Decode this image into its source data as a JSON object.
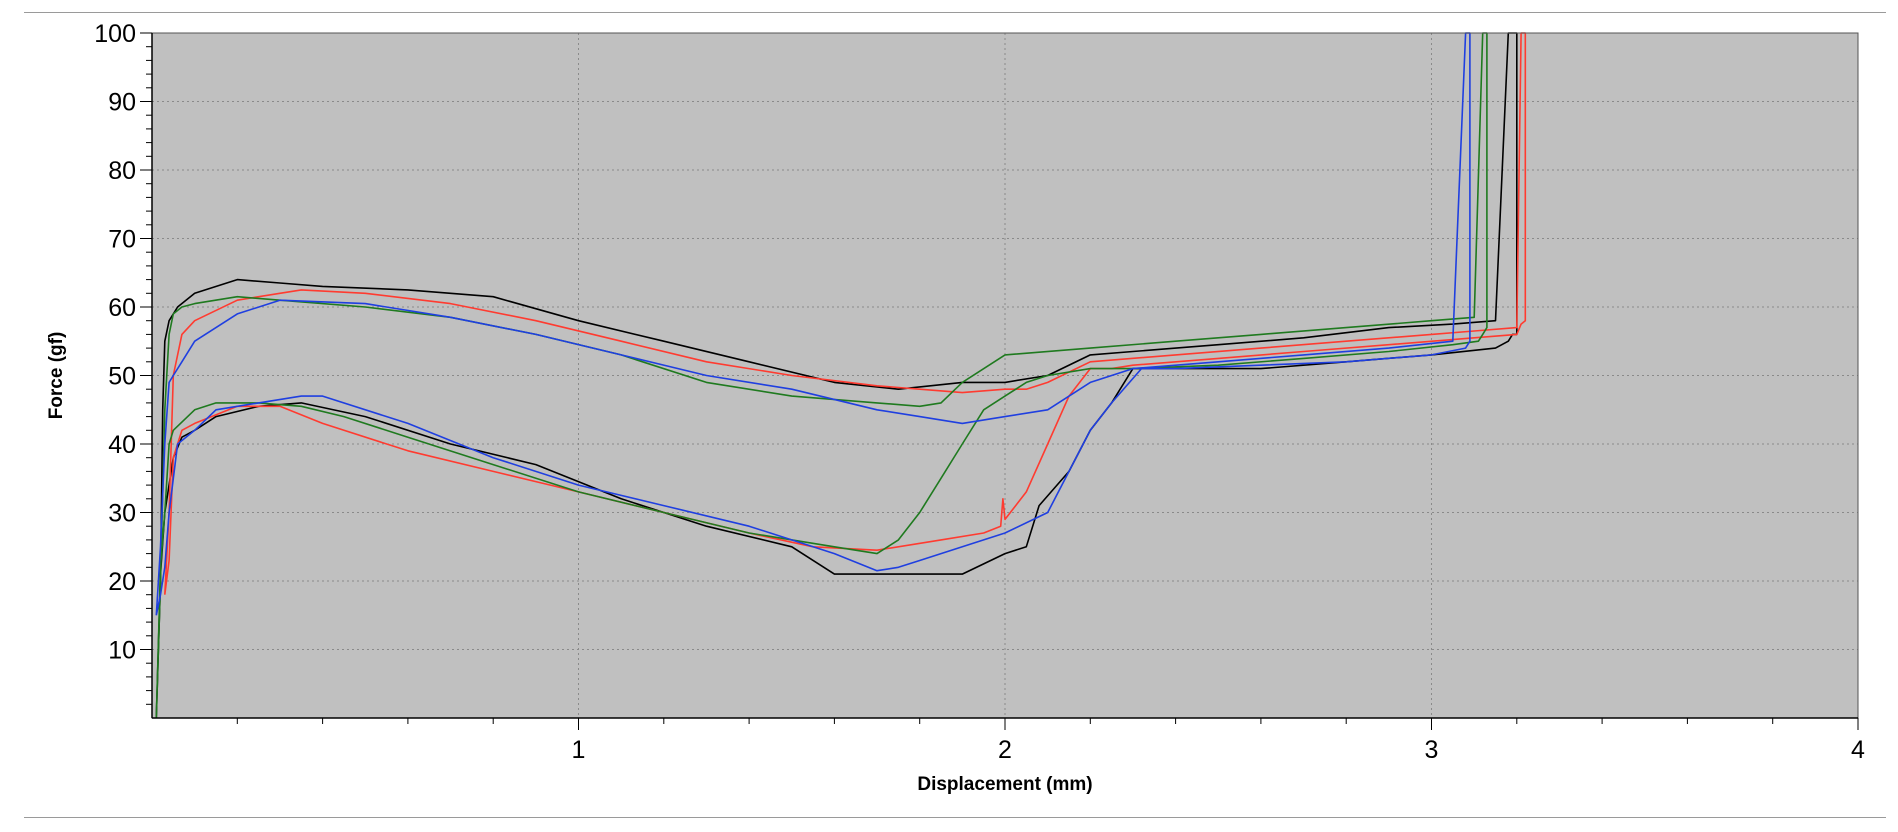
{
  "chart_data": {
    "type": "line",
    "title": "",
    "xlabel": "Displacement (mm)",
    "ylabel": "Force (gf)",
    "xlim": [
      0,
      4
    ],
    "ylim": [
      0,
      100
    ],
    "x_ticks": [
      1,
      2,
      3,
      4
    ],
    "x_tick_labels": [
      "1",
      "2",
      "3",
      "4"
    ],
    "y_ticks": [
      10,
      20,
      30,
      40,
      50,
      60,
      70,
      80,
      90,
      100
    ],
    "y_tick_labels": [
      "10",
      "20",
      "30",
      "40",
      "50",
      "60",
      "70",
      "80",
      "90",
      "100"
    ],
    "grid": true,
    "background_color": "#c0c0c0",
    "series": [
      {
        "name": "black",
        "color": "#000000",
        "x": [
          0.01,
          0.02,
          0.025,
          0.03,
          0.04,
          0.06,
          0.1,
          0.2,
          0.3,
          0.4,
          0.6,
          0.8,
          1.0,
          1.2,
          1.4,
          1.6,
          1.75,
          1.9,
          2.0,
          2.1,
          2.2,
          2.3,
          2.5,
          2.7,
          2.9,
          3.05,
          3.15,
          3.18,
          3.19,
          3.2,
          3.2,
          3.19,
          3.18,
          3.15,
          3.0,
          2.8,
          2.6,
          2.4,
          2.3,
          2.25,
          2.2,
          2.15,
          2.08,
          2.05,
          2.0,
          1.9,
          1.8,
          1.7,
          1.6,
          1.5,
          1.3,
          1.1,
          0.9,
          0.7,
          0.5,
          0.35,
          0.25,
          0.15,
          0.1,
          0.07,
          0.05,
          0.03,
          0.02,
          0.01
        ],
        "y": [
          0,
          20,
          45,
          55,
          58,
          60,
          62,
          64,
          63.5,
          63,
          62.5,
          61.5,
          58,
          55,
          52,
          49,
          48,
          49,
          49,
          50,
          53,
          53.5,
          54.5,
          55.5,
          57,
          57.5,
          58,
          100,
          100,
          100,
          56,
          56,
          55,
          54,
          53,
          52,
          51,
          51,
          51,
          46,
          42,
          36,
          31,
          25,
          24,
          21,
          21,
          21,
          21,
          25,
          28,
          32,
          37,
          40,
          44,
          46,
          45.5,
          44,
          42,
          41,
          38,
          30,
          21,
          0
        ]
      },
      {
        "name": "red",
        "color": "#ff3b30",
        "x": [
          0.03,
          0.04,
          0.05,
          0.07,
          0.1,
          0.2,
          0.3,
          0.35,
          0.5,
          0.7,
          0.9,
          1.1,
          1.3,
          1.5,
          1.7,
          1.8,
          1.9,
          2.0,
          2.05,
          2.1,
          2.2,
          2.4,
          2.6,
          2.8,
          3.0,
          3.1,
          3.2,
          3.21,
          3.22,
          3.22,
          3.21,
          3.2,
          3.1,
          2.9,
          2.7,
          2.5,
          2.3,
          2.25,
          2.2,
          2.15,
          2.1,
          2.05,
          2.0,
          1.995,
          1.99,
          1.95,
          1.85,
          1.7,
          1.55,
          1.4,
          1.2,
          1.0,
          0.8,
          0.6,
          0.4,
          0.3,
          0.2,
          0.1,
          0.07,
          0.05,
          0.04,
          0.03
        ],
        "y": [
          18,
          30,
          50,
          56,
          58,
          61,
          62,
          62.5,
          62,
          60.5,
          58,
          55,
          52,
          50,
          48.5,
          48,
          47.5,
          48,
          48,
          49,
          52,
          53,
          54,
          55,
          56,
          56.5,
          57,
          100,
          100,
          58,
          57.5,
          56,
          55.5,
          54.5,
          53.5,
          52.5,
          51.5,
          51,
          51,
          47,
          40,
          33,
          29,
          32,
          28,
          27,
          26,
          24.5,
          25,
          27,
          30,
          33,
          36,
          39,
          43,
          45.5,
          45.5,
          43,
          42,
          38,
          23,
          18
        ]
      },
      {
        "name": "green",
        "color": "#1f7a1f",
        "x": [
          0.01,
          0.02,
          0.03,
          0.04,
          0.05,
          0.07,
          0.1,
          0.2,
          0.3,
          0.5,
          0.7,
          0.9,
          1.1,
          1.3,
          1.5,
          1.7,
          1.8,
          1.85,
          1.9,
          2.0,
          2.2,
          2.4,
          2.6,
          2.8,
          3.0,
          3.1,
          3.12,
          3.13,
          3.13,
          3.12,
          3.11,
          3.05,
          2.9,
          2.7,
          2.5,
          2.3,
          2.2,
          2.1,
          2.05,
          2.0,
          1.95,
          1.9,
          1.85,
          1.8,
          1.75,
          1.7,
          1.6,
          1.4,
          1.2,
          1.0,
          0.8,
          0.6,
          0.45,
          0.35,
          0.25,
          0.15,
          0.1,
          0.05,
          0.04,
          0.03,
          0.02,
          0.01
        ],
        "y": [
          0,
          20,
          45,
          56,
          59,
          60,
          60.5,
          61.5,
          61,
          60,
          58.5,
          56,
          53,
          49,
          47,
          46,
          45.5,
          46,
          49,
          53,
          54,
          55,
          56,
          57,
          58,
          58.5,
          100,
          100,
          57,
          56,
          55,
          54.5,
          53.5,
          52.5,
          51.5,
          51,
          51,
          50,
          49,
          47,
          45,
          40,
          35,
          30,
          26,
          24,
          25,
          27,
          30,
          33,
          37,
          41,
          44,
          45.5,
          46,
          46,
          45,
          42,
          40,
          30,
          22,
          0
        ]
      },
      {
        "name": "blue",
        "color": "#1f3fe0",
        "x": [
          0.01,
          0.02,
          0.03,
          0.04,
          0.05,
          0.07,
          0.1,
          0.2,
          0.3,
          0.5,
          0.7,
          0.9,
          1.1,
          1.3,
          1.5,
          1.7,
          1.8,
          1.9,
          2.0,
          2.1,
          2.2,
          2.3,
          2.5,
          2.7,
          2.9,
          3.05,
          3.08,
          3.09,
          3.09,
          3.08,
          3.0,
          2.8,
          2.6,
          2.4,
          2.32,
          2.25,
          2.2,
          2.15,
          2.1,
          2.0,
          1.9,
          1.8,
          1.75,
          1.7,
          1.6,
          1.4,
          1.2,
          1.0,
          0.8,
          0.6,
          0.4,
          0.35,
          0.25,
          0.15,
          0.1,
          0.06,
          0.04,
          0.03,
          0.02,
          0.01
        ],
        "y": [
          15,
          25,
          40,
          49,
          50,
          52,
          55,
          59,
          61,
          60.5,
          58.5,
          56,
          53,
          50,
          48,
          45,
          44,
          43,
          44,
          45,
          49,
          51,
          52,
          53,
          54,
          55,
          100,
          100,
          55,
          54,
          53,
          52,
          51.5,
          51,
          51,
          46,
          42,
          36,
          30,
          27,
          25,
          23,
          22,
          21.5,
          24,
          28,
          31,
          34,
          38,
          43,
          47,
          47,
          46,
          45,
          42,
          40,
          30,
          22,
          18,
          15
        ]
      }
    ]
  }
}
